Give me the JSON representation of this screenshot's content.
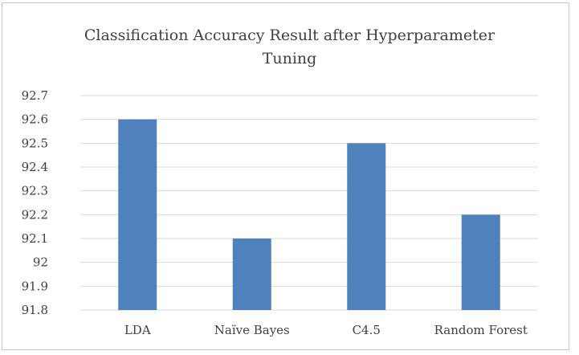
{
  "chart_data": {
    "type": "bar",
    "title_line1": "Classification Accuracy Result after Hyperparameter",
    "title_line2": "Tuning",
    "categories": [
      "LDA",
      "Naïve Bayes",
      "C4.5",
      "Random Forest"
    ],
    "values": [
      92.6,
      92.1,
      92.5,
      92.2
    ],
    "ylim": [
      91.8,
      92.7
    ],
    "yticks": [
      "91.8",
      "91.9",
      "92",
      "92.1",
      "92.2",
      "92.3",
      "92.4",
      "92.5",
      "92.6",
      "92.7"
    ],
    "bar_color": "#4f81bd",
    "grid_color": "#d9d9d9",
    "grid": true,
    "legend": "none"
  }
}
